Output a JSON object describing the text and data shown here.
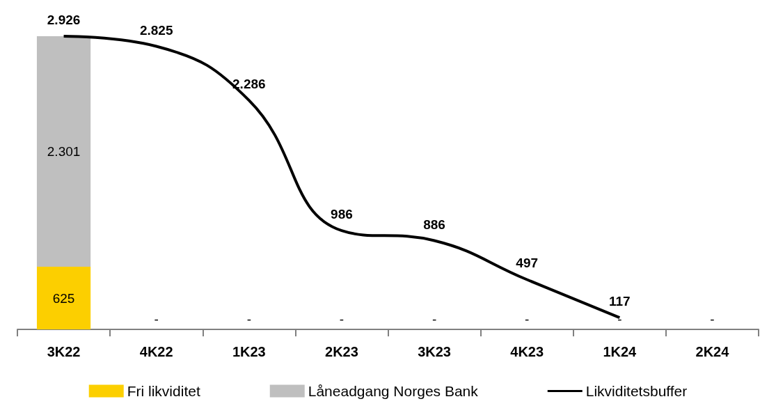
{
  "chart_data": {
    "type": "bar",
    "stacked": true,
    "categories": [
      "3K22",
      "4K22",
      "1K23",
      "2K23",
      "3K23",
      "4K23",
      "1K24",
      "2K24"
    ],
    "tick_labels": "x",
    "legend": "bottom",
    "marker": "none",
    "series": [
      {
        "name": "Fri likviditet",
        "color": "#fccf00",
        "values": [
          625,
          0,
          0,
          0,
          0,
          0,
          0,
          0
        ],
        "value_labels": [
          "625",
          "-",
          "-",
          "-",
          "-",
          "-",
          "-",
          "-"
        ]
      },
      {
        "name": "Låneadgang Norges Bank",
        "color": "#bfbfbf",
        "values": [
          2301,
          0,
          0,
          0,
          0,
          0,
          0,
          0
        ],
        "value_labels": [
          "2.301",
          null,
          null,
          null,
          null,
          null,
          null,
          null
        ]
      },
      {
        "name": "Likviditetsbuffer",
        "type": "line",
        "color": "#000000",
        "values": [
          2926,
          2825,
          2286,
          986,
          886,
          497,
          117,
          null
        ],
        "value_labels": [
          "2.926",
          "2.825",
          "2.286",
          "986",
          "886",
          "497",
          "117",
          null
        ]
      }
    ]
  }
}
